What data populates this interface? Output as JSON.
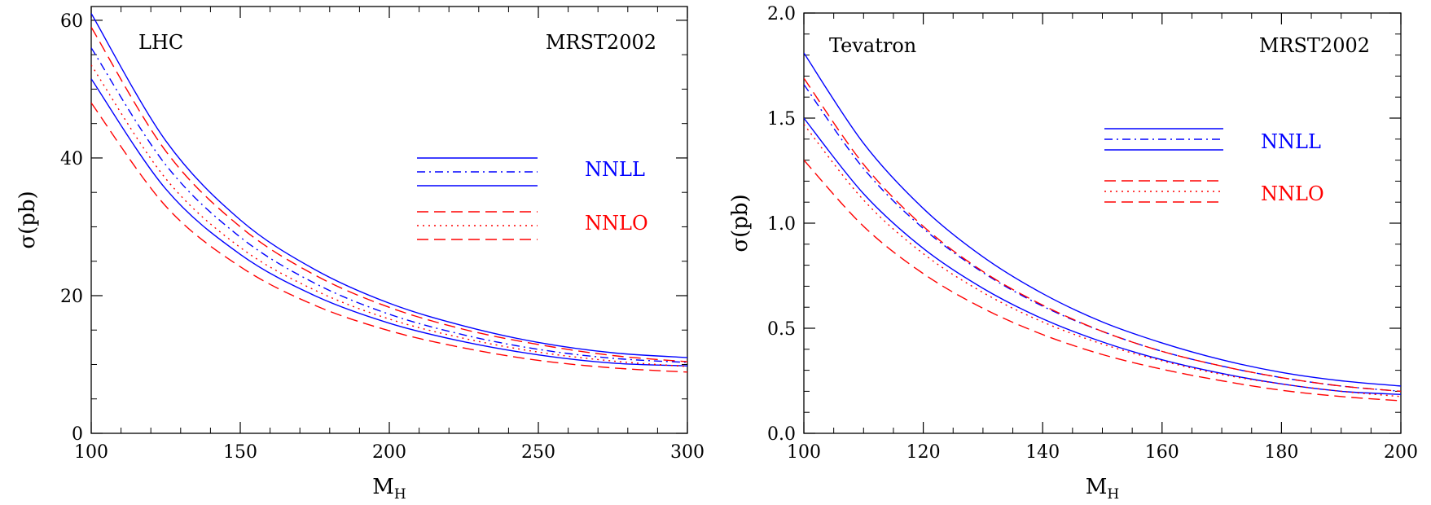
{
  "chart_data": [
    {
      "type": "line",
      "panel_label": "LHC",
      "pdf_label": "MRST2002",
      "xlabel": "M",
      "xlabel_sub": "H",
      "ylabel": "σ(pb)",
      "xlim": [
        100,
        300
      ],
      "ylim": [
        0,
        62
      ],
      "xticks": [
        100,
        150,
        200,
        250,
        300
      ],
      "xtick_labels": [
        "100",
        "150",
        "200",
        "250",
        "300"
      ],
      "yticks": [
        0,
        20,
        40,
        60
      ],
      "ytick_labels": [
        "0",
        "20",
        "40",
        "60"
      ],
      "legend_position": "right",
      "legend_groups": [
        {
          "label": "NNLL",
          "color": "#0000ff",
          "styles": [
            "solid",
            "dashdot",
            "solid"
          ]
        },
        {
          "label": "NNLO",
          "color": "#ff0000",
          "styles": [
            "dashed",
            "dotted",
            "dashed"
          ]
        }
      ],
      "x": [
        100,
        125,
        150,
        175,
        200,
        225,
        250,
        275,
        300
      ],
      "series": [
        {
          "group": "NNLL",
          "color": "#0000ff",
          "style": "solid",
          "values": [
            61.0,
            42.5,
            31.0,
            23.8,
            18.9,
            15.6,
            13.2,
            11.7,
            11.0
          ]
        },
        {
          "group": "NNLL",
          "color": "#0000ff",
          "style": "dashdot",
          "values": [
            56.0,
            39.0,
            28.5,
            21.8,
            17.3,
            14.3,
            12.2,
            10.9,
            10.3
          ]
        },
        {
          "group": "NNLL",
          "color": "#0000ff",
          "style": "solid",
          "values": [
            51.5,
            35.5,
            26.0,
            20.0,
            16.0,
            13.3,
            11.4,
            10.2,
            9.8
          ]
        },
        {
          "group": "NNLO",
          "color": "#ff0000",
          "style": "dashed",
          "values": [
            59.0,
            41.0,
            30.0,
            23.0,
            18.3,
            15.1,
            12.9,
            11.3,
            10.4
          ]
        },
        {
          "group": "NNLO",
          "color": "#ff0000",
          "style": "dotted",
          "values": [
            53.5,
            37.0,
            27.0,
            20.8,
            16.6,
            13.8,
            11.8,
            10.5,
            9.7
          ]
        },
        {
          "group": "NNLO",
          "color": "#ff0000",
          "style": "dashed",
          "values": [
            48.0,
            33.0,
            24.2,
            18.6,
            14.9,
            12.4,
            10.6,
            9.5,
            8.9
          ]
        }
      ]
    },
    {
      "type": "line",
      "panel_label": "Tevatron",
      "pdf_label": "MRST2002",
      "xlabel": "M",
      "xlabel_sub": "H",
      "ylabel": "σ(pb)",
      "xlim": [
        100,
        200
      ],
      "ylim": [
        0,
        2.0
      ],
      "xticks": [
        100,
        120,
        140,
        160,
        180,
        200
      ],
      "xtick_labels": [
        "100",
        "120",
        "140",
        "160",
        "180",
        "200"
      ],
      "yticks": [
        0,
        0.5,
        1.0,
        1.5,
        2.0
      ],
      "ytick_labels": [
        "0.0",
        "0.5",
        "1.0",
        "1.5",
        "2.0"
      ],
      "legend_position": "upper-right",
      "legend_groups": [
        {
          "label": "NNLL",
          "color": "#0000ff",
          "styles": [
            "solid",
            "dashdot",
            "solid"
          ]
        },
        {
          "label": "NNLO",
          "color": "#ff0000",
          "styles": [
            "dashed",
            "dotted",
            "dashed"
          ]
        }
      ],
      "x": [
        100,
        110,
        120,
        130,
        140,
        150,
        160,
        170,
        180,
        190,
        200
      ],
      "series": [
        {
          "group": "NNLL",
          "color": "#0000ff",
          "style": "solid",
          "values": [
            1.81,
            1.38,
            1.07,
            0.84,
            0.665,
            0.53,
            0.43,
            0.35,
            0.29,
            0.25,
            0.225
          ]
        },
        {
          "group": "NNLL",
          "color": "#0000ff",
          "style": "dashdot",
          "values": [
            1.66,
            1.26,
            0.975,
            0.765,
            0.605,
            0.485,
            0.39,
            0.32,
            0.265,
            0.225,
            0.2
          ]
        },
        {
          "group": "NNLL",
          "color": "#0000ff",
          "style": "solid",
          "values": [
            1.5,
            1.14,
            0.88,
            0.69,
            0.545,
            0.435,
            0.35,
            0.285,
            0.235,
            0.2,
            0.185
          ]
        },
        {
          "group": "NNLO",
          "color": "#ff0000",
          "style": "dashed",
          "values": [
            1.69,
            1.28,
            0.985,
            0.77,
            0.61,
            0.485,
            0.39,
            0.32,
            0.265,
            0.225,
            0.2
          ]
        },
        {
          "group": "NNLO",
          "color": "#ff0000",
          "style": "dotted",
          "values": [
            1.47,
            1.11,
            0.855,
            0.67,
            0.53,
            0.425,
            0.345,
            0.28,
            0.235,
            0.2,
            0.175
          ]
        },
        {
          "group": "NNLO",
          "color": "#ff0000",
          "style": "dashed",
          "values": [
            1.3,
            0.985,
            0.76,
            0.595,
            0.47,
            0.375,
            0.305,
            0.25,
            0.205,
            0.175,
            0.155
          ]
        }
      ]
    }
  ]
}
